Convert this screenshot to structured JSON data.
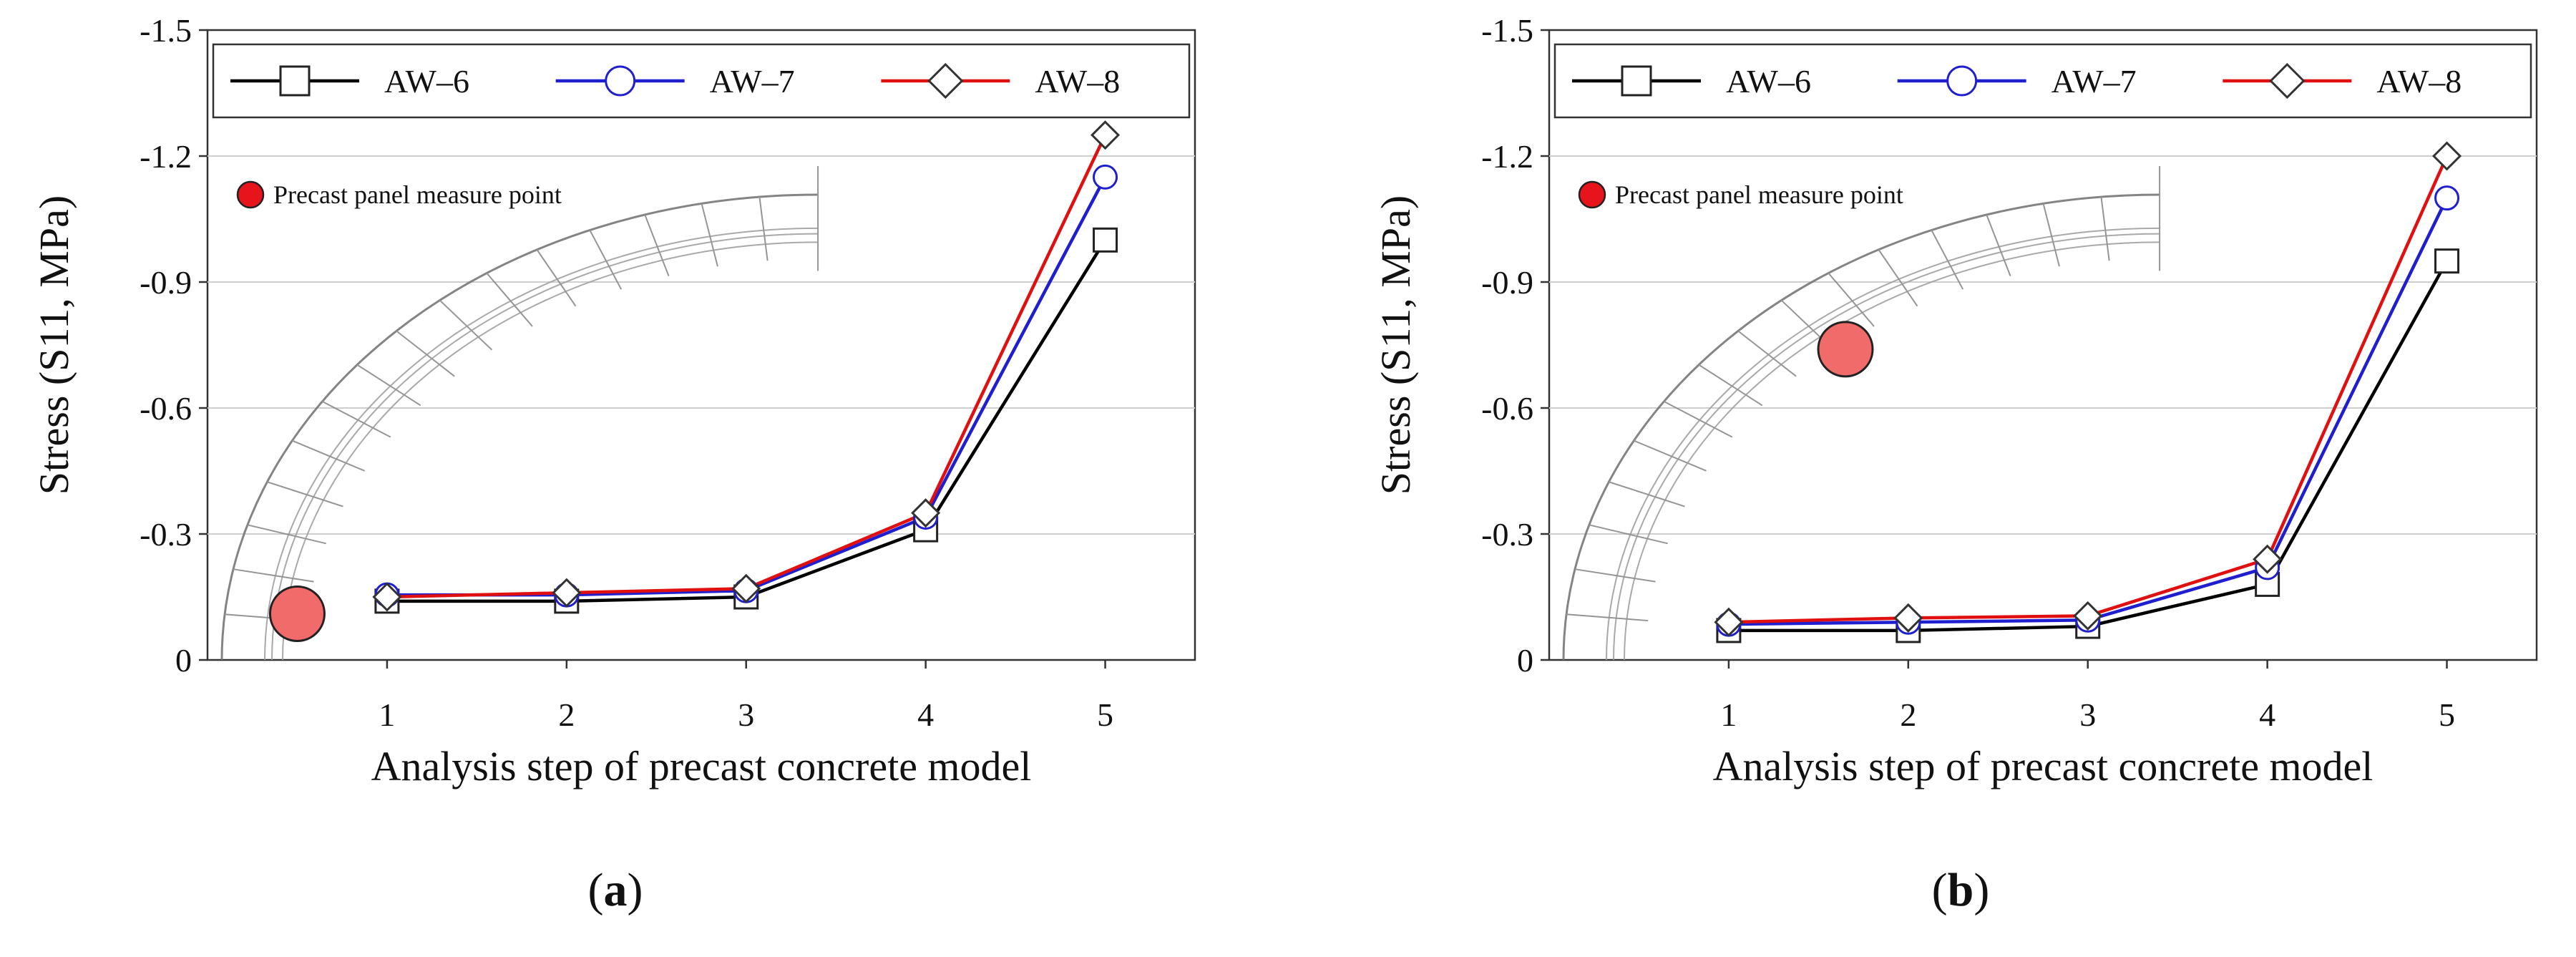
{
  "legend_note": "Precast panel measure point",
  "chart_data": [
    {
      "type": "line",
      "panel_label": "a",
      "xlabel": "Analysis step of precast concrete model",
      "ylabel": "Stress (S11, MPa)",
      "xlim": [
        0,
        5.5
      ],
      "ylim": [
        0,
        -1.5
      ],
      "y_inverted": true,
      "x_ticks": [
        "1",
        "2",
        "3",
        "4",
        "5"
      ],
      "y_ticks": [
        "-1.5",
        "-1.2",
        "-0.9",
        "-0.6",
        "-0.3",
        "0"
      ],
      "grid": "horizontal",
      "legend_position": "top",
      "measure_point": {
        "x": 0.5,
        "y": -0.11
      },
      "x": [
        1,
        2,
        3,
        4,
        5
      ],
      "series": [
        {
          "name": "AW–6",
          "color": "#000000",
          "marker": "square",
          "values": [
            -0.14,
            -0.14,
            -0.15,
            -0.31,
            -1.0
          ]
        },
        {
          "name": "AW–7",
          "color": "#1f1fd0",
          "marker": "circle",
          "values": [
            -0.155,
            -0.155,
            -0.165,
            -0.34,
            -1.15
          ]
        },
        {
          "name": "AW–8",
          "color": "#e01010",
          "marker": "diamond",
          "values": [
            -0.15,
            -0.16,
            -0.17,
            -0.35,
            -1.25
          ]
        }
      ]
    },
    {
      "type": "line",
      "panel_label": "b",
      "xlabel": "Analysis step of precast concrete model",
      "ylabel": "Stress (S11, MPa)",
      "xlim": [
        0,
        5.5
      ],
      "ylim": [
        0,
        -1.5
      ],
      "y_inverted": true,
      "x_ticks": [
        "1",
        "2",
        "3",
        "4",
        "5"
      ],
      "y_ticks": [
        "-1.5",
        "-1.2",
        "-0.9",
        "-0.6",
        "-0.3",
        "0"
      ],
      "grid": "horizontal",
      "legend_position": "top",
      "measure_point": {
        "x": 1.65,
        "y": -0.74
      },
      "x": [
        1,
        2,
        3,
        4,
        5
      ],
      "series": [
        {
          "name": "AW–6",
          "color": "#000000",
          "marker": "square",
          "values": [
            -0.07,
            -0.07,
            -0.08,
            -0.18,
            -0.95
          ]
        },
        {
          "name": "AW–7",
          "color": "#1f1fd0",
          "marker": "circle",
          "values": [
            -0.085,
            -0.09,
            -0.095,
            -0.22,
            -1.1
          ]
        },
        {
          "name": "AW–8",
          "color": "#e01010",
          "marker": "diamond",
          "values": [
            -0.09,
            -0.1,
            -0.105,
            -0.24,
            -1.2
          ]
        }
      ]
    }
  ]
}
